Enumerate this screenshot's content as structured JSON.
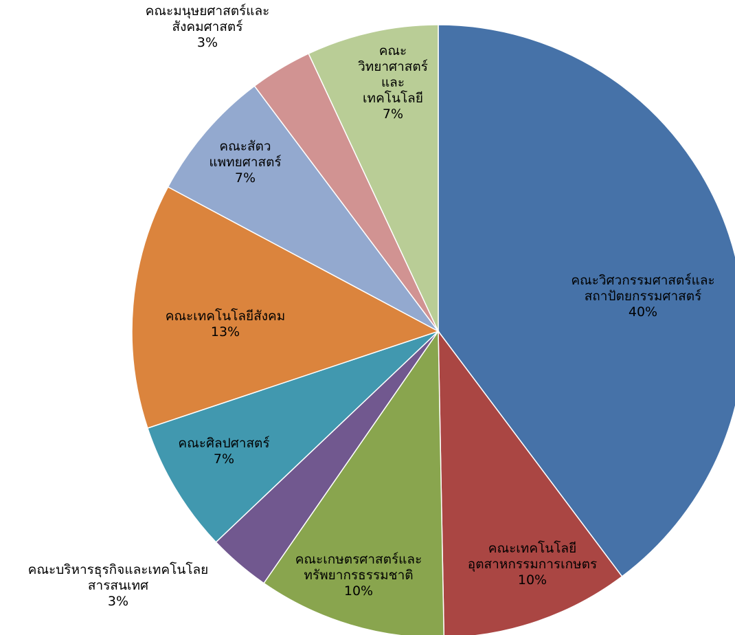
{
  "chart_data": {
    "type": "pie",
    "title": "",
    "unit": "%",
    "start_angle_deg": 0,
    "direction": "clockwise",
    "slices": [
      {
        "label": "คณะวิศวกรรมศาสตร์และสถาปัตยกรรมศาสตร์",
        "label_lines": [
          "คณะวิศวกรรมศาสตร์และ",
          "สถาปัตยกรรมศาสตร์"
        ],
        "value": 40,
        "display": "40%",
        "color": "#4672A8"
      },
      {
        "label": "คณะเทคโนโลยีอุตสาหกรรมการเกษตร",
        "label_lines": [
          "คณะเทคโนโลยี",
          "อุตสาหกรรมการเกษตร"
        ],
        "value": 10,
        "display": "10%",
        "color": "#AA4643"
      },
      {
        "label": "คณะเกษตรศาสตร์และทรัพยากรธรรมชาติ",
        "label_lines": [
          "คณะเกษตรศาสตร์และ",
          "ทรัพยากรธรรมชาติ"
        ],
        "value": 10,
        "display": "10%",
        "color": "#89A54E"
      },
      {
        "label": "คณะบริหารธุรกิจและเทคโนโลยสารสนเทศ",
        "label_lines": [
          "คณะบริหารธุรกิจและเทคโนโลย",
          "สารสนเทศ"
        ],
        "value": 3.3,
        "display": "3%",
        "color": "#71588F"
      },
      {
        "label": "คณะศิลปศาสตร์",
        "label_lines": [
          "คณะศิลปศาสตร์"
        ],
        "value": 7,
        "display": "7%",
        "color": "#4198AF"
      },
      {
        "label": "คณะเทคโนโลยีสังคม",
        "label_lines": [
          "คณะเทคโนโลยีสังคม"
        ],
        "value": 13,
        "display": "13%",
        "color": "#DB843D"
      },
      {
        "label": "คณะสัตวแพทยศาสตร์",
        "label_lines": [
          "คณะสัตว",
          "แพทยศาสตร์"
        ],
        "value": 7,
        "display": "7%",
        "color": "#93A9CF"
      },
      {
        "label": "คณะมนุษยศาสตร์และสังคมศาสตร์",
        "label_lines": [
          "คณะมนุษยศาสตร์และ",
          "สังคมศาสตร์"
        ],
        "value": 3.3,
        "display": "3%",
        "color": "#D19392"
      },
      {
        "label": "คณะวิทยาศาสตร์และเทคโนโลยี",
        "label_lines": [
          "คณะ",
          "วิทยาศาสตร์",
          "และ",
          "เทคโนโลยี"
        ],
        "value": 7,
        "display": "7%",
        "color": "#B9CD96"
      }
    ]
  }
}
